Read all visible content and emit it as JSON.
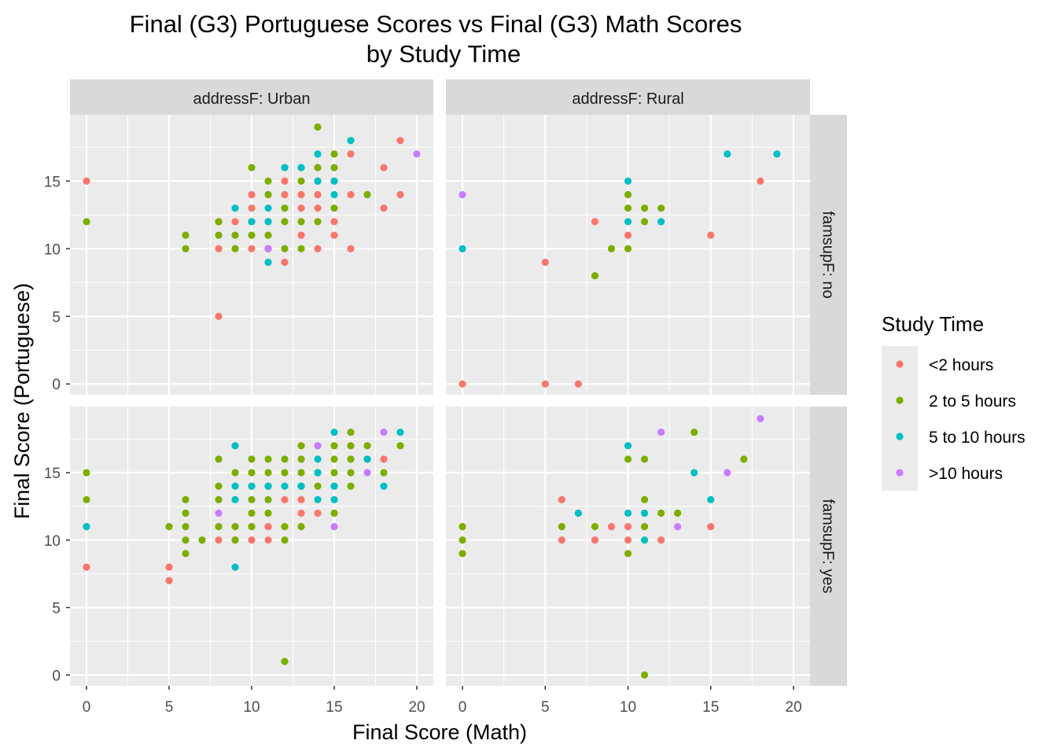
{
  "chart_data": {
    "type": "scatter",
    "title_line1": "Final (G3) Portuguese Scores vs Final (G3) Math Scores",
    "title_line2": "by Study Time",
    "xlabel": "Final Score (Math)",
    "ylabel": "Final Score (Portuguese)",
    "xlim": [
      -1,
      21
    ],
    "ylim": [
      -0.8,
      19.9
    ],
    "x_ticks": [
      0,
      5,
      10,
      15,
      20
    ],
    "y_ticks": [
      0,
      5,
      10,
      15
    ],
    "grid": true,
    "legend": {
      "title": "Study Time",
      "position": "right",
      "entries": [
        {
          "label": "<2 hours",
          "color": "#F8766D"
        },
        {
          "label": "2 to 5 hours",
          "color": "#7CAE00"
        },
        {
          "label": "5 to 10 hours",
          "color": "#00BFC4"
        },
        {
          "label": ">10 hours",
          "color": "#C77CFF"
        }
      ]
    },
    "col_facets": [
      "addressF: Urban",
      "addressF: Rural"
    ],
    "row_facets": [
      "famsupF: no",
      "famsupF: yes"
    ],
    "panels": [
      {
        "col": 0,
        "row": 0,
        "series": [
          {
            "name": "<2 hours",
            "points": [
              [
                0,
                15
              ],
              [
                8,
                12
              ],
              [
                8,
                10
              ],
              [
                8,
                5
              ],
              [
                9,
                12
              ],
              [
                10,
                14
              ],
              [
                10,
                13
              ],
              [
                10,
                10
              ],
              [
                11,
                12
              ],
              [
                11,
                10
              ],
              [
                12,
                15
              ],
              [
                12,
                14
              ],
              [
                12,
                9
              ],
              [
                13,
                14
              ],
              [
                13,
                13
              ],
              [
                13,
                11
              ],
              [
                14,
                14
              ],
              [
                14,
                13
              ],
              [
                14,
                10
              ],
              [
                15,
                12
              ],
              [
                15,
                11
              ],
              [
                16,
                17
              ],
              [
                16,
                14
              ],
              [
                16,
                10
              ],
              [
                18,
                16
              ],
              [
                18,
                13
              ],
              [
                19,
                18
              ],
              [
                19,
                14
              ]
            ]
          },
          {
            "name": "2 to 5 hours",
            "points": [
              [
                0,
                12
              ],
              [
                6,
                11
              ],
              [
                6,
                10
              ],
              [
                8,
                12
              ],
              [
                8,
                11
              ],
              [
                9,
                11
              ],
              [
                9,
                10
              ],
              [
                10,
                16
              ],
              [
                10,
                12
              ],
              [
                10,
                11
              ],
              [
                11,
                15
              ],
              [
                11,
                14
              ],
              [
                11,
                11
              ],
              [
                11,
                10
              ],
              [
                12,
                13
              ],
              [
                12,
                12
              ],
              [
                12,
                10
              ],
              [
                13,
                15
              ],
              [
                13,
                12
              ],
              [
                13,
                10
              ],
              [
                14,
                19
              ],
              [
                14,
                16
              ],
              [
                14,
                15
              ],
              [
                14,
                12
              ],
              [
                15,
                17
              ],
              [
                15,
                16
              ],
              [
                15,
                15
              ],
              [
                15,
                13
              ],
              [
                17,
                14
              ]
            ]
          },
          {
            "name": "5 to 10 hours",
            "points": [
              [
                9,
                13
              ],
              [
                10,
                12
              ],
              [
                11,
                13
              ],
              [
                11,
                12
              ],
              [
                11,
                9
              ],
              [
                12,
                16
              ],
              [
                13,
                16
              ],
              [
                14,
                17
              ],
              [
                14,
                15
              ],
              [
                15,
                15
              ],
              [
                15,
                14
              ],
              [
                16,
                18
              ]
            ]
          },
          {
            "name": ">10 hours",
            "points": [
              [
                11,
                10
              ],
              [
                20,
                17
              ]
            ]
          }
        ]
      },
      {
        "col": 1,
        "row": 0,
        "series": [
          {
            "name": "<2 hours",
            "points": [
              [
                0,
                0
              ],
              [
                5,
                9
              ],
              [
                5,
                0
              ],
              [
                7,
                0
              ],
              [
                8,
                12
              ],
              [
                10,
                11
              ],
              [
                15,
                11
              ],
              [
                18,
                15
              ]
            ]
          },
          {
            "name": "2 to 5 hours",
            "points": [
              [
                8,
                8
              ],
              [
                9,
                10
              ],
              [
                10,
                14
              ],
              [
                10,
                13
              ],
              [
                10,
                10
              ],
              [
                11,
                13
              ],
              [
                11,
                12
              ],
              [
                12,
                13
              ]
            ]
          },
          {
            "name": "5 to 10 hours",
            "points": [
              [
                0,
                10
              ],
              [
                10,
                15
              ],
              [
                10,
                12
              ],
              [
                12,
                12
              ],
              [
                16,
                17
              ],
              [
                19,
                17
              ]
            ]
          },
          {
            "name": ">10 hours",
            "points": [
              [
                0,
                14
              ]
            ]
          }
        ]
      },
      {
        "col": 0,
        "row": 1,
        "series": [
          {
            "name": "<2 hours",
            "points": [
              [
                0,
                8
              ],
              [
                5,
                8
              ],
              [
                5,
                7
              ],
              [
                8,
                10
              ],
              [
                9,
                10
              ],
              [
                10,
                10
              ],
              [
                11,
                11
              ],
              [
                11,
                10
              ],
              [
                12,
                13
              ],
              [
                13,
                13
              ],
              [
                13,
                12
              ],
              [
                14,
                12
              ],
              [
                18,
                16
              ]
            ]
          },
          {
            "name": "2 to 5 hours",
            "points": [
              [
                0,
                15
              ],
              [
                0,
                13
              ],
              [
                5,
                11
              ],
              [
                6,
                13
              ],
              [
                6,
                12
              ],
              [
                6,
                11
              ],
              [
                6,
                10
              ],
              [
                6,
                9
              ],
              [
                7,
                10
              ],
              [
                8,
                16
              ],
              [
                8,
                14
              ],
              [
                8,
                13
              ],
              [
                8,
                11
              ],
              [
                9,
                15
              ],
              [
                9,
                11
              ],
              [
                9,
                10
              ],
              [
                10,
                16
              ],
              [
                10,
                15
              ],
              [
                10,
                14
              ],
              [
                10,
                13
              ],
              [
                10,
                12
              ],
              [
                10,
                11
              ],
              [
                11,
                16
              ],
              [
                11,
                15
              ],
              [
                11,
                14
              ],
              [
                11,
                13
              ],
              [
                11,
                12
              ],
              [
                12,
                16
              ],
              [
                12,
                15
              ],
              [
                12,
                11
              ],
              [
                12,
                10
              ],
              [
                12,
                1
              ],
              [
                13,
                17
              ],
              [
                13,
                16
              ],
              [
                13,
                15
              ],
              [
                13,
                14
              ],
              [
                13,
                11
              ],
              [
                14,
                17
              ],
              [
                14,
                15
              ],
              [
                14,
                14
              ],
              [
                15,
                17
              ],
              [
                15,
                16
              ],
              [
                15,
                15
              ],
              [
                15,
                14
              ],
              [
                15,
                12
              ],
              [
                16,
                18
              ],
              [
                16,
                17
              ],
              [
                16,
                16
              ],
              [
                16,
                15
              ],
              [
                16,
                14
              ],
              [
                17,
                17
              ],
              [
                17,
                16
              ],
              [
                18,
                15
              ],
              [
                19,
                17
              ]
            ]
          },
          {
            "name": "5 to 10 hours",
            "points": [
              [
                0,
                11
              ],
              [
                9,
                17
              ],
              [
                9,
                14
              ],
              [
                9,
                13
              ],
              [
                9,
                8
              ],
              [
                10,
                14
              ],
              [
                11,
                14
              ],
              [
                12,
                14
              ],
              [
                13,
                14
              ],
              [
                14,
                16
              ],
              [
                14,
                15
              ],
              [
                14,
                13
              ],
              [
                15,
                18
              ],
              [
                15,
                14
              ],
              [
                15,
                13
              ],
              [
                17,
                16
              ],
              [
                18,
                14
              ],
              [
                19,
                18
              ]
            ]
          },
          {
            "name": ">10 hours",
            "points": [
              [
                8,
                12
              ],
              [
                14,
                17
              ],
              [
                15,
                11
              ],
              [
                17,
                15
              ],
              [
                18,
                18
              ]
            ]
          }
        ]
      },
      {
        "col": 1,
        "row": 1,
        "series": [
          {
            "name": "<2 hours",
            "points": [
              [
                0,
                9
              ],
              [
                6,
                13
              ],
              [
                6,
                10
              ],
              [
                8,
                10
              ],
              [
                9,
                11
              ],
              [
                10,
                11
              ],
              [
                10,
                10
              ],
              [
                12,
                10
              ],
              [
                15,
                11
              ]
            ]
          },
          {
            "name": "2 to 5 hours",
            "points": [
              [
                0,
                11
              ],
              [
                0,
                10
              ],
              [
                0,
                9
              ],
              [
                6,
                11
              ],
              [
                8,
                11
              ],
              [
                10,
                16
              ],
              [
                10,
                9
              ],
              [
                11,
                16
              ],
              [
                11,
                13
              ],
              [
                11,
                11
              ],
              [
                11,
                0
              ],
              [
                12,
                12
              ],
              [
                13,
                12
              ],
              [
                14,
                18
              ],
              [
                17,
                16
              ]
            ]
          },
          {
            "name": "5 to 10 hours",
            "points": [
              [
                7,
                12
              ],
              [
                10,
                17
              ],
              [
                10,
                12
              ],
              [
                11,
                12
              ],
              [
                11,
                10
              ],
              [
                14,
                15
              ],
              [
                15,
                13
              ]
            ]
          },
          {
            "name": ">10 hours",
            "points": [
              [
                12,
                18
              ],
              [
                13,
                11
              ],
              [
                16,
                15
              ],
              [
                18,
                19
              ]
            ]
          }
        ]
      }
    ]
  }
}
